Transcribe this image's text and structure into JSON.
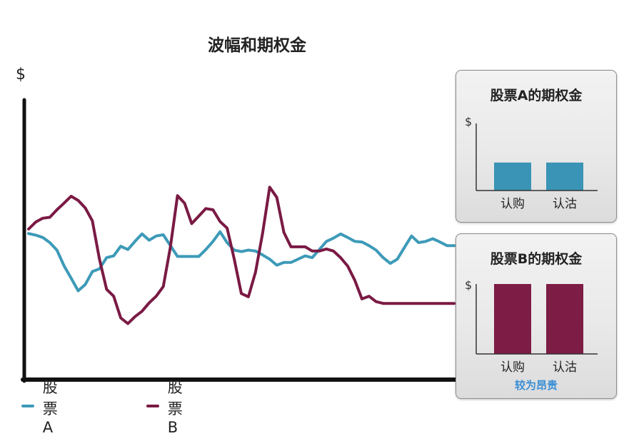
{
  "chart_data": [
    {
      "type": "line",
      "title": "波幅和期权金",
      "ylabel": "$",
      "grid": false,
      "legend": "bottom-left",
      "x": [
        0,
        1,
        2,
        3,
        4,
        5,
        6,
        7,
        8,
        9,
        10,
        11,
        12,
        13,
        14,
        15,
        16,
        17,
        18,
        19,
        20,
        21,
        22,
        23,
        24,
        25,
        26,
        27,
        28,
        29,
        30,
        31,
        32,
        33,
        34,
        35,
        36,
        37,
        38,
        39,
        40,
        41,
        42,
        43,
        44,
        45,
        46,
        47,
        48,
        49,
        50,
        51,
        52,
        53,
        54,
        55,
        56,
        57,
        58,
        59,
        60
      ],
      "ylim": [
        0,
        100
      ],
      "series": [
        {
          "name": "股票A",
          "color": "#3d9ab8",
          "values": [
            48.5,
            48.0,
            47.2,
            45.5,
            43.0,
            37.8,
            33.7,
            29.5,
            31.6,
            35.9,
            36.8,
            40.5,
            41.1,
            44.3,
            43.2,
            45.9,
            48.4,
            46.3,
            47.7,
            48.1,
            44.5,
            40.9,
            40.9,
            40.9,
            40.9,
            43.2,
            45.9,
            49.1,
            45.5,
            43.0,
            42.5,
            43.0,
            42.7,
            41.4,
            40.0,
            38.0,
            38.9,
            38.9,
            40.0,
            41.1,
            40.5,
            43.2,
            45.9,
            47.0,
            48.4,
            47.2,
            45.9,
            45.7,
            44.5,
            43.0,
            40.5,
            38.6,
            40.0,
            43.9,
            47.7,
            45.5,
            45.9,
            46.8,
            45.7,
            44.5,
            44.5
          ]
        },
        {
          "name": "股票B",
          "color": "#7a1a44",
          "values": [
            50.0,
            52.3,
            53.6,
            53.9,
            56.4,
            58.6,
            60.9,
            59.5,
            57.0,
            52.7,
            40.0,
            30.0,
            27.7,
            20.5,
            18.6,
            20.9,
            22.7,
            25.5,
            27.7,
            30.9,
            44.1,
            61.1,
            58.6,
            51.8,
            54.3,
            56.8,
            56.4,
            52.5,
            50.3,
            40.0,
            28.6,
            27.5,
            35.7,
            48.6,
            63.9,
            60.5,
            48.9,
            44.1,
            44.1,
            44.1,
            42.7,
            42.7,
            43.4,
            42.7,
            40.5,
            37.7,
            33.0,
            26.8,
            27.7,
            25.9,
            25.3,
            25.3,
            25.3,
            25.3,
            25.3,
            25.3,
            25.3,
            25.3,
            25.3,
            25.3,
            25.3
          ]
        }
      ]
    },
    {
      "type": "bar",
      "title": "股票A的期权金",
      "ylabel": "$",
      "categories": [
        "认购",
        "认沽"
      ],
      "values": [
        40,
        40
      ],
      "ylim": [
        0,
        100
      ],
      "color": "#3a94b5"
    },
    {
      "type": "bar",
      "title": "股票B的期权金",
      "ylabel": "$",
      "categories": [
        "认购",
        "认沽"
      ],
      "values": [
        100,
        100
      ],
      "ylim": [
        0,
        100
      ],
      "color": "#7d1c45",
      "annotation": "较为昂贵"
    }
  ]
}
